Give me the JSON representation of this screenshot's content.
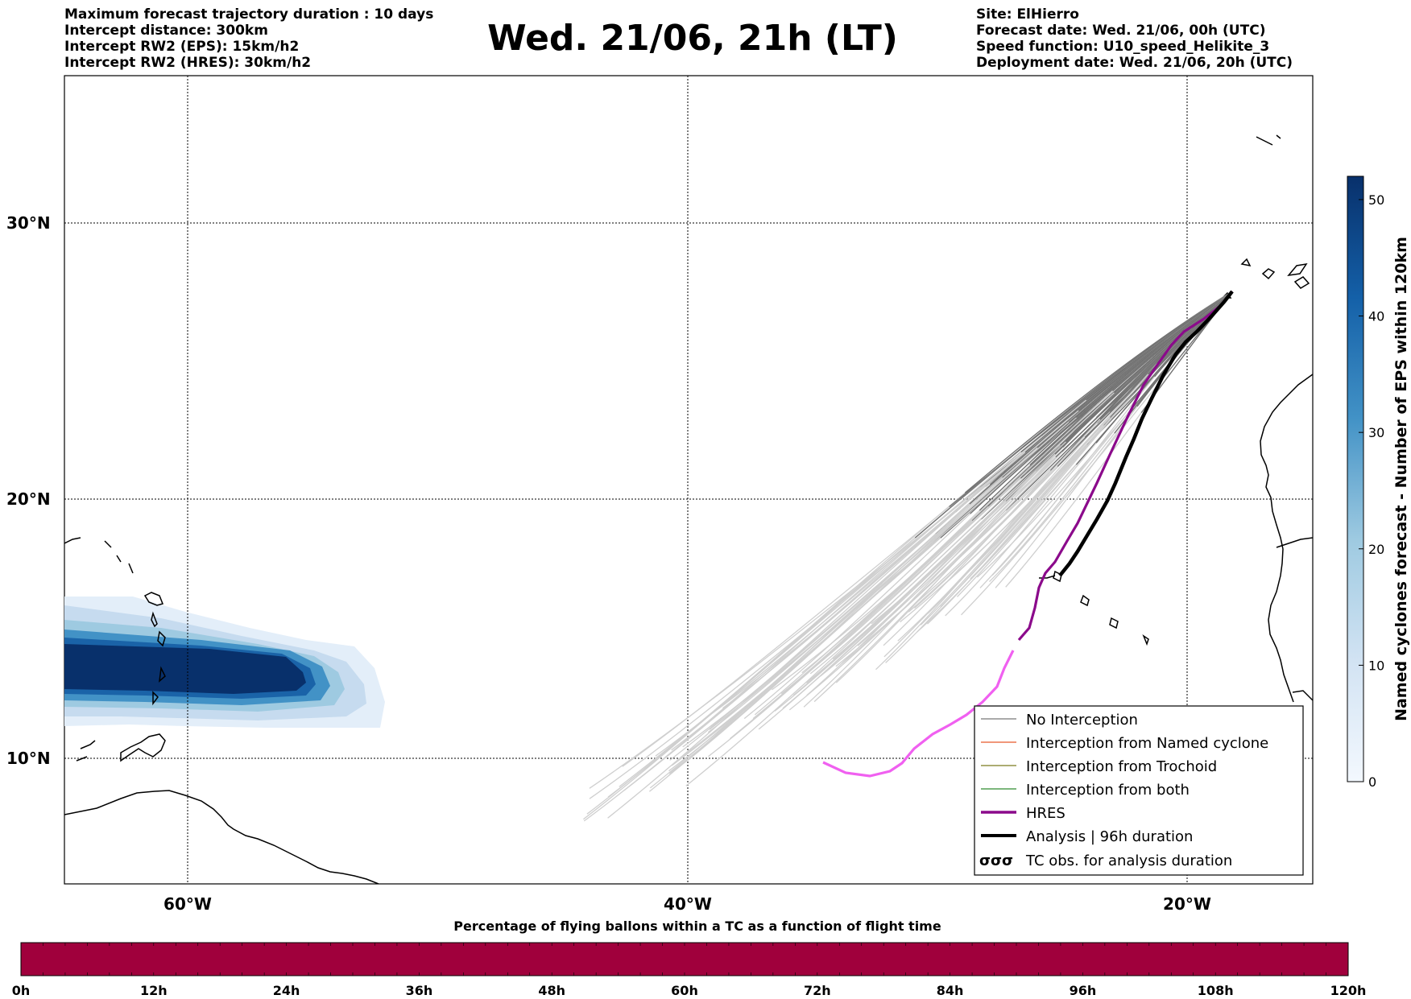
{
  "header": {
    "left_lines": [
      "Maximum forecast trajectory duration : 10 days",
      "Intercept distance: 300km",
      "Intercept RW2 (EPS):  15km/h2",
      "Intercept RW2 (HRES): 30km/h2"
    ],
    "title": "Wed. 21/06, 21h (LT)",
    "right_lines": [
      "Site: ElHierro",
      "Forecast date: Wed. 21/06, 00h (UTC)",
      "Speed function: U10_speed_Helikite_3",
      "Deployment date: Wed. 21/06, 20h (UTC)"
    ]
  },
  "map": {
    "lat_labels": [
      "30°N",
      "20°N",
      "10°N"
    ],
    "lon_labels": [
      "60°W",
      "40°W",
      "20°W"
    ],
    "grid": "dotted"
  },
  "legend": {
    "items": [
      {
        "label": "No Interception",
        "color": "#777777"
      },
      {
        "label": "Interception from Named cyclone",
        "color": "#e8592a"
      },
      {
        "label": "Interception from Trochoid",
        "color": "#7a7a1e"
      },
      {
        "label": "Interception from both",
        "color": "#2e8b2e"
      },
      {
        "label": "HRES",
        "color": "#8b0a8b"
      },
      {
        "label": "Analysis | 96h duration",
        "color": "#000000"
      },
      {
        "label": "TC obs. for analysis duration",
        "symbol": "σσσ"
      }
    ]
  },
  "colorbar": {
    "label": "Named cyclones forecast - Number of EPS within 120km",
    "ticks": [
      "0",
      "10",
      "20",
      "30",
      "40",
      "50"
    ],
    "max": 52
  },
  "flight_bar": {
    "title": "Percentage of flying ballons within a TC as a function of flight time",
    "ticks": [
      "0h",
      "12h",
      "24h",
      "36h",
      "48h",
      "60h",
      "72h",
      "84h",
      "96h",
      "108h",
      "120h"
    ],
    "color": "#a0003c"
  }
}
